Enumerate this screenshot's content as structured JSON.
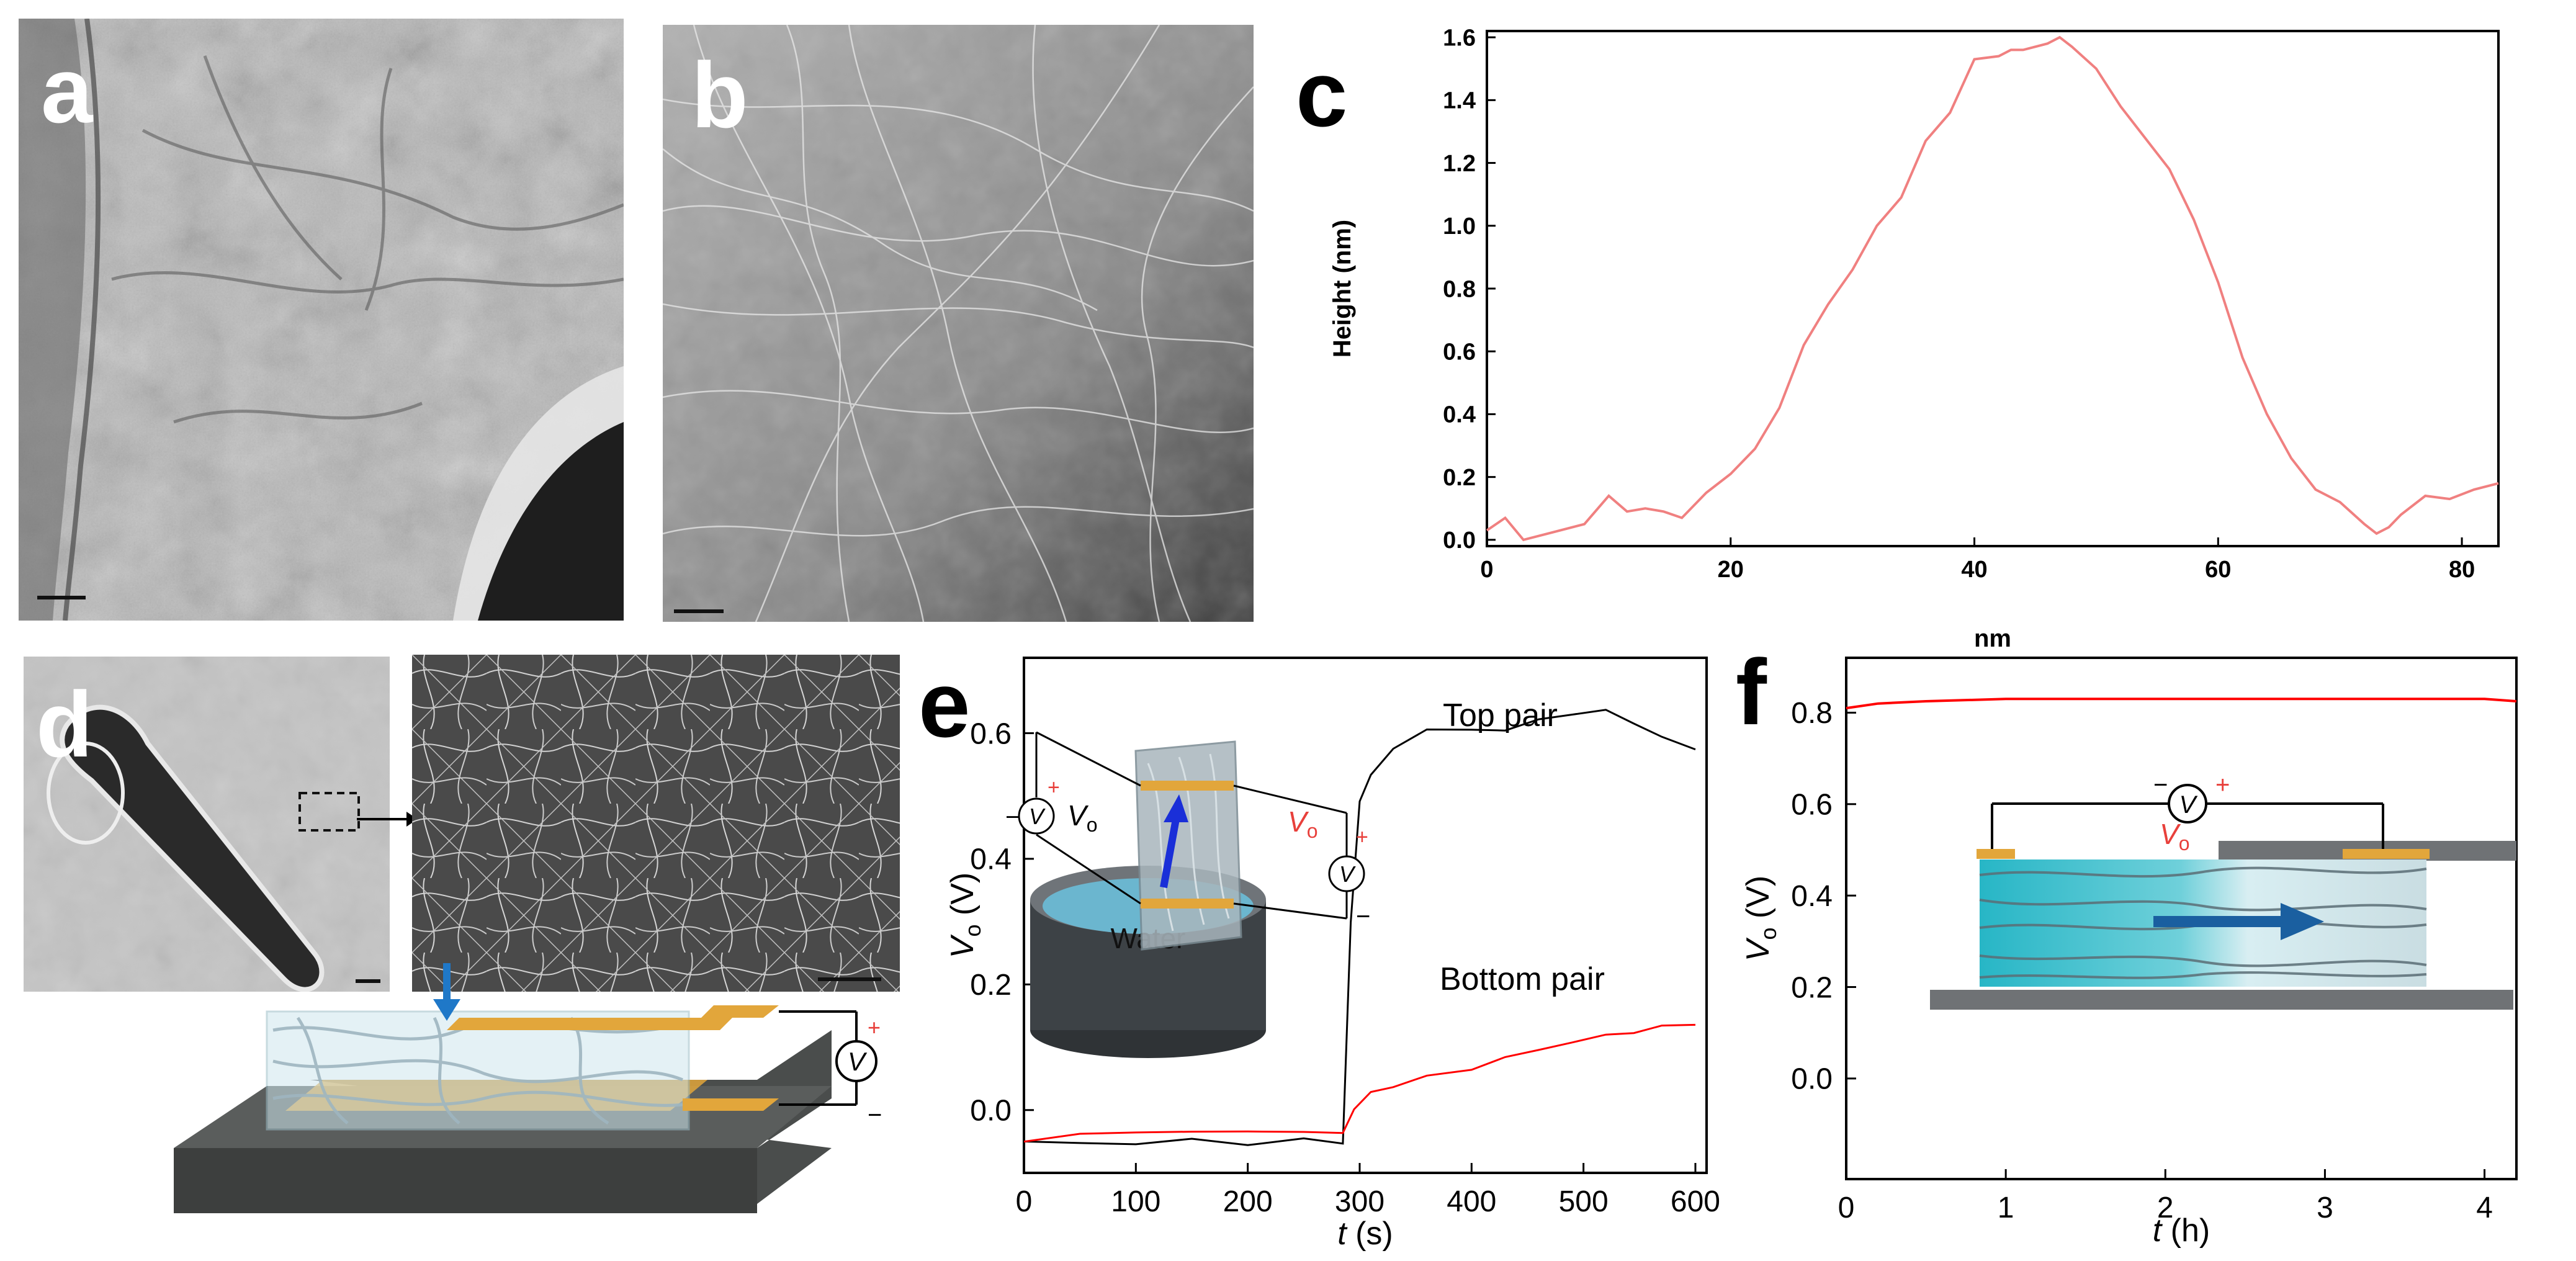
{
  "panels": {
    "a": {
      "label": "a"
    },
    "b": {
      "label": "b"
    },
    "c": {
      "label": "c"
    },
    "d": {
      "label": "d"
    },
    "e": {
      "label": "e"
    },
    "f": {
      "label": "f"
    }
  },
  "colors": {
    "red": "#e8403b",
    "pink": "#f08080",
    "gold": "#e0a020",
    "water": "#5fb4d0",
    "cyan": "#2bb8c8"
  },
  "chart_c": {
    "type": "line",
    "xlabel": "nm",
    "ylabel": "Height (nm)",
    "xlim": [
      0,
      83
    ],
    "ylim": [
      -0.02,
      1.62
    ],
    "xticks": [
      0,
      20,
      40,
      60,
      80
    ],
    "yticks": [
      0.0,
      0.2,
      0.4,
      0.6,
      0.8,
      1.0,
      1.2,
      1.4,
      1.6
    ],
    "x": [
      0,
      1.5,
      3,
      5,
      8,
      10,
      11.5,
      13,
      14.5,
      16,
      18,
      20,
      22,
      24,
      26,
      28,
      30,
      32,
      34,
      36,
      38,
      40,
      42,
      43,
      44,
      46,
      47,
      48,
      50,
      52,
      54,
      56,
      58,
      60,
      62,
      64,
      66,
      68,
      70,
      72,
      73,
      74,
      75,
      77,
      79,
      81,
      83
    ],
    "y": [
      0.03,
      0.07,
      0.0,
      0.02,
      0.05,
      0.14,
      0.09,
      0.1,
      0.09,
      0.07,
      0.15,
      0.21,
      0.29,
      0.42,
      0.62,
      0.75,
      0.86,
      1.0,
      1.09,
      1.27,
      1.36,
      1.53,
      1.54,
      1.56,
      1.56,
      1.58,
      1.6,
      1.57,
      1.5,
      1.38,
      1.28,
      1.18,
      1.02,
      0.82,
      0.58,
      0.4,
      0.26,
      0.16,
      0.12,
      0.05,
      0.02,
      0.04,
      0.08,
      0.14,
      0.13,
      0.16,
      0.18
    ]
  },
  "chart_e": {
    "type": "line",
    "xlabel_italic": "t",
    "xlabel_unit": " (s)",
    "ylabel_main": "V",
    "ylabel_sub": "o",
    "ylabel_unit": " (V)",
    "xlim": [
      0,
      610
    ],
    "ylim": [
      -0.1,
      0.72
    ],
    "xticks": [
      0,
      100,
      200,
      300,
      400,
      500,
      600
    ],
    "yticks": [
      0.0,
      0.2,
      0.4,
      0.6
    ],
    "ytick_labels": [
      "0.0",
      "0.2",
      "0.4",
      "0.6"
    ],
    "series": [
      {
        "name": "Top pair",
        "color": "#000000",
        "x": [
          0,
          50,
          100,
          150,
          200,
          250,
          285,
          292,
          300,
          310,
          330,
          360,
          400,
          430,
          460,
          490,
          520,
          545,
          570,
          600
        ],
        "y": [
          -0.05,
          -0.05,
          -0.05,
          -0.04,
          -0.05,
          -0.04,
          -0.05,
          0.3,
          0.49,
          0.53,
          0.57,
          0.6,
          0.6,
          0.6,
          0.62,
          0.63,
          0.64,
          0.62,
          0.6,
          0.58
        ]
      },
      {
        "name": "Bottom pair",
        "color": "#ff0000",
        "x": [
          0,
          50,
          100,
          150,
          200,
          250,
          285,
          295,
          310,
          330,
          360,
          400,
          430,
          460,
          490,
          520,
          545,
          570,
          600
        ],
        "y": [
          -0.05,
          -0.04,
          -0.04,
          -0.04,
          -0.04,
          -0.04,
          -0.04,
          0.0,
          0.03,
          0.04,
          0.06,
          0.07,
          0.09,
          0.1,
          0.11,
          0.12,
          0.12,
          0.13,
          0.13
        ]
      }
    ],
    "legend_top": "Top pair",
    "legend_bottom": "Bottom pair",
    "inset_water": "Water",
    "inset_v": "V",
    "inset_vo": "V",
    "inset_vo_sub": "o",
    "plus": "+",
    "minus": "−"
  },
  "chart_f": {
    "type": "line",
    "xlabel_italic": "t",
    "xlabel_unit": " (h)",
    "ylabel_main": "V",
    "ylabel_sub": "o",
    "ylabel_unit": " (V)",
    "xlim": [
      0,
      4.2
    ],
    "ylim": [
      -0.22,
      0.92
    ],
    "xticks": [
      0,
      1,
      2,
      3,
      4
    ],
    "yticks": [
      0.0,
      0.2,
      0.4,
      0.6,
      0.8
    ],
    "ytick_labels": [
      "0.0",
      "0.2",
      "0.4",
      "0.6",
      "0.8"
    ],
    "series": [
      {
        "name": "Vo",
        "color": "#ff0000",
        "x": [
          0,
          0.2,
          0.5,
          1,
          1.5,
          2,
          2.5,
          3,
          3.5,
          4,
          4.2
        ],
        "y": [
          0.81,
          0.82,
          0.825,
          0.83,
          0.83,
          0.83,
          0.83,
          0.83,
          0.83,
          0.83,
          0.825
        ]
      }
    ],
    "inset_v": "V",
    "inset_vo": "V",
    "inset_vo_sub": "o",
    "plus": "+",
    "minus": "−"
  },
  "panel_d_schematic": {
    "v": "V",
    "plus": "+",
    "minus": "−"
  }
}
